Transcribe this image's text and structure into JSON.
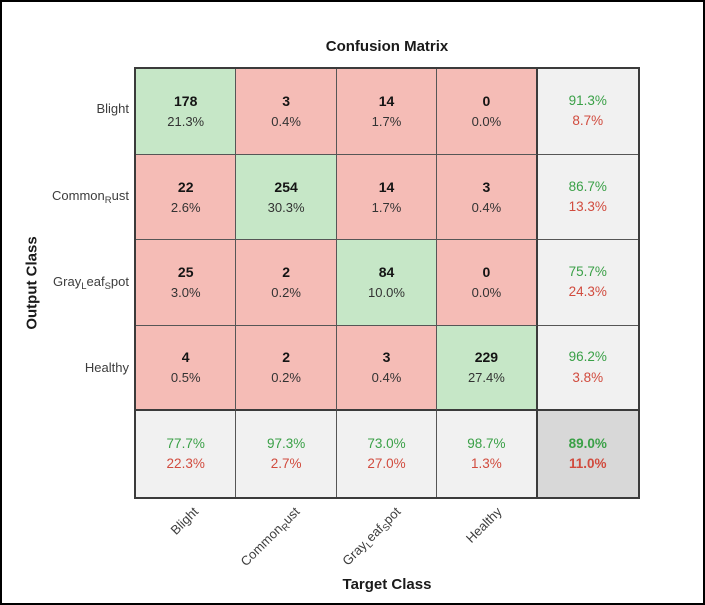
{
  "title": "Confusion Matrix",
  "axes": {
    "x_label": "Target Class",
    "y_label": "Output Class"
  },
  "colors": {
    "correct_bg": "#c6e7c7",
    "incorrect_bg": "#f5bcb6",
    "summary_bg": "#f1f1f1",
    "total_bg": "#d8d8d8",
    "good_text": "#3aa047",
    "bad_text": "#d14b3e",
    "grid_line": "#565656",
    "frame_line": "#3b3b3b"
  },
  "chart_data": {
    "type": "heatmap",
    "subtype": "confusion-matrix",
    "title": "Confusion Matrix",
    "xlabel": "Target Class",
    "ylabel": "Output Class",
    "classes": [
      {
        "name": "Blight",
        "segments": [
          {
            "text": "Blight",
            "sub": false
          }
        ]
      },
      {
        "name": "Common_Rust",
        "segments": [
          {
            "text": "Common",
            "sub": false
          },
          {
            "text": "R",
            "sub": true
          },
          {
            "text": "ust",
            "sub": false
          }
        ]
      },
      {
        "name": "Gray_Leaf_Spot",
        "segments": [
          {
            "text": "Gray",
            "sub": false
          },
          {
            "text": "L",
            "sub": true
          },
          {
            "text": "eaf",
            "sub": false
          },
          {
            "text": "S",
            "sub": true
          },
          {
            "text": "pot",
            "sub": false
          }
        ]
      },
      {
        "name": "Healthy",
        "segments": [
          {
            "text": "Healthy",
            "sub": false
          }
        ]
      }
    ],
    "counts": [
      [
        178,
        3,
        14,
        0
      ],
      [
        22,
        254,
        14,
        3
      ],
      [
        25,
        2,
        84,
        0
      ],
      [
        4,
        2,
        3,
        229
      ]
    ],
    "cell_percents": [
      [
        "21.3%",
        "0.4%",
        "1.7%",
        "0.0%"
      ],
      [
        "2.6%",
        "30.3%",
        "1.7%",
        "0.4%"
      ],
      [
        "3.0%",
        "0.2%",
        "10.0%",
        "0.0%"
      ],
      [
        "0.5%",
        "0.2%",
        "0.4%",
        "27.4%"
      ]
    ],
    "row_summary": [
      {
        "good": "91.3%",
        "bad": "8.7%"
      },
      {
        "good": "86.7%",
        "bad": "13.3%"
      },
      {
        "good": "75.7%",
        "bad": "24.3%"
      },
      {
        "good": "96.2%",
        "bad": "3.8%"
      }
    ],
    "col_summary": [
      {
        "good": "77.7%",
        "bad": "22.3%"
      },
      {
        "good": "97.3%",
        "bad": "2.7%"
      },
      {
        "good": "73.0%",
        "bad": "27.0%"
      },
      {
        "good": "98.7%",
        "bad": "1.3%"
      }
    ],
    "overall": {
      "good": "89.0%",
      "bad": "11.0%"
    }
  }
}
